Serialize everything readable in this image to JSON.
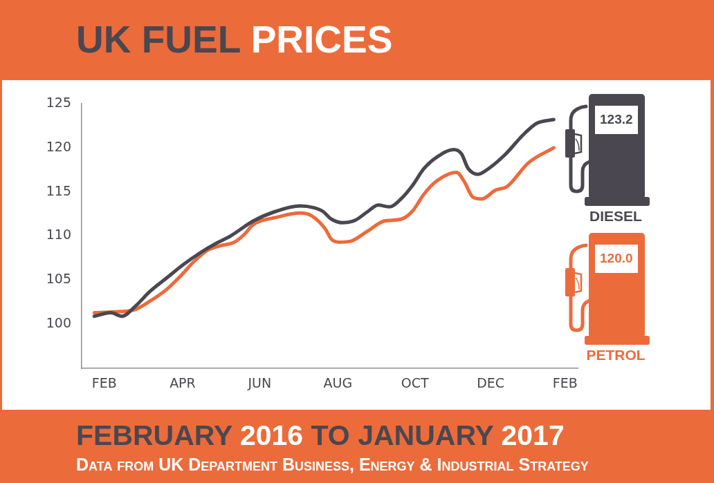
{
  "chart_data": {
    "type": "line",
    "title": "UK FUEL PRICES",
    "subtitle": "FEBRUARY 2016 TO JANUARY 2017",
    "annotations": [
      "123.2",
      "120.0",
      "Data from UK Department Business, Energy & Industrial Strategy"
    ],
    "xlim": [
      "2016-01-22",
      "2017-02-18"
    ],
    "xticks": [
      {
        "value": "2016-02-09",
        "label": "FEB"
      },
      {
        "value": "2016-04-11",
        "label": "APR"
      },
      {
        "value": "2016-06-11",
        "label": "JUN"
      },
      {
        "value": "2016-08-12",
        "label": "AUG"
      },
      {
        "value": "2016-10-12",
        "label": "OCT"
      },
      {
        "value": "2016-12-11",
        "label": "DEC"
      },
      {
        "value": "2017-02-08",
        "label": "FEB"
      }
    ],
    "ylim": [
      95,
      125
    ],
    "yticks": [
      100,
      105,
      110,
      115,
      120,
      125
    ],
    "grid": false,
    "legend": "right",
    "marker": "none",
    "line_style": "solid",
    "series": [
      {
        "name": "DIESEL",
        "color": "#4a4750",
        "x": [
          "2016-02-01",
          "2016-02-14",
          "2016-02-23",
          "2016-03-05",
          "2016-03-16",
          "2016-03-29",
          "2016-04-12",
          "2016-04-25",
          "2016-05-08",
          "2016-05-19",
          "2016-06-06",
          "2016-06-24",
          "2016-07-13",
          "2016-07-24",
          "2016-07-31",
          "2016-08-07",
          "2016-08-16",
          "2016-08-26",
          "2016-09-04",
          "2016-09-13",
          "2016-09-22",
          "2016-10-01",
          "2016-10-10",
          "2016-10-19",
          "2016-10-29",
          "2016-11-12",
          "2016-11-18",
          "2016-11-23",
          "2016-12-01",
          "2016-12-10",
          "2016-12-23",
          "2017-01-06",
          "2017-01-17",
          "2017-01-30"
        ],
        "values": [
          100.9,
          101.3,
          100.9,
          102.1,
          103.7,
          105.2,
          106.8,
          108.1,
          109.2,
          110.0,
          111.7,
          112.8,
          113.4,
          113.2,
          112.8,
          111.9,
          111.5,
          111.8,
          112.7,
          113.5,
          113.3,
          114.2,
          115.7,
          117.6,
          118.9,
          119.8,
          119.3,
          117.7,
          117.0,
          117.7,
          119.3,
          121.5,
          122.8,
          123.2
        ]
      },
      {
        "name": "PETROL",
        "color": "#ec6b3b",
        "x": [
          "2016-02-01",
          "2016-02-17",
          "2016-03-03",
          "2016-03-16",
          "2016-03-29",
          "2016-04-09",
          "2016-04-20",
          "2016-05-01",
          "2016-05-11",
          "2016-05-22",
          "2016-05-30",
          "2016-06-06",
          "2016-06-24",
          "2016-07-13",
          "2016-07-22",
          "2016-08-02",
          "2016-08-07",
          "2016-08-13",
          "2016-08-22",
          "2016-09-04",
          "2016-09-18",
          "2016-10-01",
          "2016-10-10",
          "2016-10-19",
          "2016-10-29",
          "2016-11-14",
          "2016-11-20",
          "2016-11-27",
          "2016-12-04",
          "2016-12-15",
          "2016-12-24",
          "2017-01-10",
          "2017-01-30"
        ],
        "values": [
          101.3,
          101.4,
          101.6,
          102.6,
          103.9,
          105.4,
          107.1,
          108.4,
          108.9,
          109.3,
          110.2,
          111.3,
          112.1,
          112.6,
          112.3,
          110.8,
          109.6,
          109.3,
          109.4,
          110.5,
          111.7,
          111.9,
          112.8,
          114.7,
          116.2,
          117.2,
          116.2,
          114.4,
          114.2,
          115.2,
          115.6,
          118.3,
          120.0
        ]
      }
    ]
  }
}
